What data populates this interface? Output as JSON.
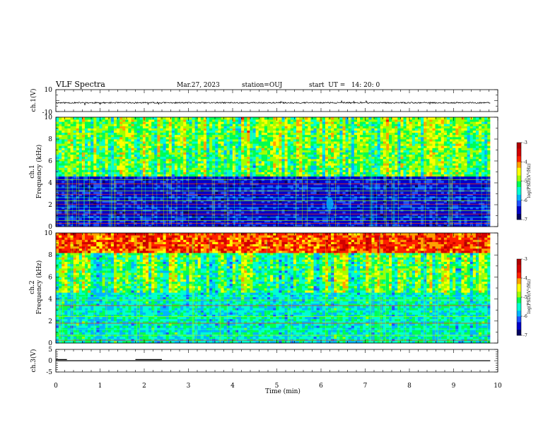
{
  "header": {
    "title": "VLF Spectra",
    "date": "Mar.27, 2023",
    "station": "station=OUJ",
    "start_ut": "start  UT =   14: 20: 0"
  },
  "colors": {
    "palette": [
      "#000060",
      "#0000c8",
      "#1e50ff",
      "#00b4ff",
      "#00ffd2",
      "#00ff50",
      "#a0ff00",
      "#ffff00",
      "#ffa000",
      "#ff1e00",
      "#d20000",
      "#b00000"
    ]
  },
  "chart_data": [
    {
      "type": "line",
      "name": "ch1-waveform",
      "ylabel": "ch.1(V)",
      "ylim": [
        -10,
        10
      ],
      "yticks": [
        "10",
        "-10"
      ],
      "xlim": [
        0,
        10
      ],
      "baseline": -2,
      "noise_amplitude": 0.6,
      "data_end": 9.83
    },
    {
      "type": "heatmap",
      "name": "ch1-spectrogram",
      "ylabel": "ch.1\nFrequency (kHz)",
      "ylabel_lines": [
        "ch.1",
        "Frequency (kHz)"
      ],
      "ylim": [
        0,
        10
      ],
      "yticks": [
        "0",
        "2",
        "4",
        "6",
        "8",
        "10"
      ],
      "xlim": [
        0,
        10
      ],
      "data_end": 9.83,
      "colorbar": {
        "range": [
          -7,
          -3
        ],
        "ticks": [
          "-3",
          "-4",
          "-5",
          "-6",
          "-7"
        ],
        "label": "log(PSD)(V²/Hz)"
      },
      "features": {
        "noise_floor_top_khz": 4.6,
        "harmonic_lines_khz": [
          0.3,
          0.55,
          0.85,
          1.15,
          1.45,
          1.75,
          2.05,
          2.35,
          2.65,
          2.95,
          3.25,
          3.55,
          3.9,
          4.3
        ],
        "burst_near_min": 6.2,
        "burst_near_khz": 2.1
      }
    },
    {
      "type": "heatmap",
      "name": "ch2-spectrogram",
      "ylabel": "ch.2\nFrequency (kHz)",
      "ylabel_lines": [
        "ch.2",
        "Frequency (kHz)"
      ],
      "ylim": [
        0,
        10
      ],
      "yticks": [
        "0",
        "2",
        "4",
        "6",
        "8",
        "10"
      ],
      "xlim": [
        0,
        10
      ],
      "data_end": 9.83,
      "colorbar": {
        "range": [
          -7,
          -3
        ],
        "ticks": [
          "-3",
          "-4",
          "-5",
          "-6",
          "-7"
        ],
        "label": "log(PSD)(V²/Hz)"
      },
      "features": {
        "high_band_khz": [
          8.2,
          10
        ],
        "harmonic_lines_khz": [
          0.25,
          0.7,
          1.25,
          1.8,
          2.4,
          2.95,
          3.4,
          3.9,
          4.2
        ]
      }
    },
    {
      "type": "line",
      "name": "ch3-sync",
      "ylabel": "ch.3(V)",
      "ylim": [
        -5,
        5
      ],
      "yticks": [
        "5",
        "0",
        "-5"
      ],
      "xlim": [
        0,
        10
      ],
      "xlabel": "Time (min)",
      "xticks": [
        "0",
        "1",
        "2",
        "3",
        "4",
        "5",
        "6",
        "7",
        "8",
        "9",
        "10"
      ],
      "data_end": 9.83,
      "level": 0,
      "pulses": [
        {
          "start": 0.0,
          "end": 0.25,
          "value": 0.5
        },
        {
          "start": 1.8,
          "end": 2.4,
          "value": 0.5
        }
      ]
    }
  ]
}
